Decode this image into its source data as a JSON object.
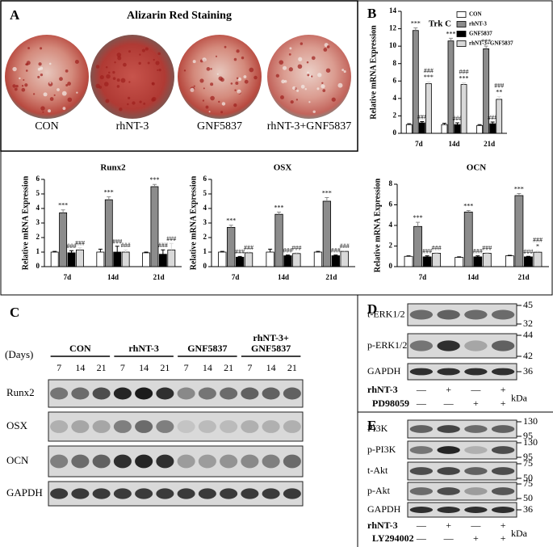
{
  "panel_labels": [
    "A",
    "B",
    "C",
    "D",
    "E"
  ],
  "staining": {
    "title": "Alizarin Red Staining",
    "groups": [
      "CON",
      "rhNT-3",
      "GNF5837",
      "rhNT-3+GNF5837"
    ]
  },
  "chart_data": [
    {
      "type": "bar",
      "title": "Trk C",
      "y_label": "Relative mRNA Expression",
      "categories": [
        "7d",
        "14d",
        "21d"
      ],
      "ylim": [
        0,
        14
      ],
      "yticks": [
        0,
        2,
        4,
        6,
        8,
        10,
        12,
        14
      ],
      "legend": "top-right",
      "series": [
        {
          "name": "CON",
          "color": "#ffffff",
          "values": [
            1.0,
            1.0,
            0.9
          ],
          "errors": [
            0.1,
            0.15,
            0.1
          ]
        },
        {
          "name": "rhNT-3",
          "color": "#8c8c8c",
          "values": [
            11.8,
            10.6,
            9.7
          ],
          "errors": [
            0.3,
            0.3,
            0.3
          ],
          "annotations": [
            [
              "***"
            ],
            [
              "***"
            ],
            [
              "***"
            ]
          ]
        },
        {
          "name": "GNF5837",
          "color": "#000000",
          "values": [
            1.2,
            1.0,
            1.1
          ],
          "errors": [
            0.15,
            0.2,
            0.2
          ],
          "annotations": [
            [
              "###"
            ],
            [
              "###"
            ],
            [
              "###"
            ]
          ]
        },
        {
          "name": "rhNT-3+GNF5837",
          "color": "#d9d9d9",
          "values": [
            5.7,
            5.6,
            3.9
          ],
          "errors": [
            0.2,
            0.2,
            0.3
          ],
          "annotations": [
            [
              "###",
              "***"
            ],
            [
              "###",
              "***"
            ],
            [
              "###",
              "**"
            ]
          ]
        }
      ]
    },
    {
      "type": "bar",
      "title": "Runx2",
      "y_label": "Relative mRNA Expression",
      "categories": [
        "7d",
        "14d",
        "21d"
      ],
      "ylim": [
        0,
        6
      ],
      "yticks": [
        0,
        1,
        2,
        3,
        4,
        5,
        6
      ],
      "series": [
        {
          "color": "#ffffff",
          "values": [
            1.0,
            1.0,
            0.95
          ],
          "errors": [
            0.05,
            0.2,
            0.05
          ]
        },
        {
          "color": "#8c8c8c",
          "values": [
            3.7,
            4.6,
            5.5
          ],
          "errors": [
            0.2,
            0.2,
            0.15
          ],
          "annotations": [
            [
              "***"
            ],
            [
              "***"
            ],
            [
              "***"
            ]
          ]
        },
        {
          "color": "#000000",
          "values": [
            0.95,
            1.0,
            0.85
          ],
          "errors": [
            0.15,
            0.4,
            0.3
          ],
          "annotations": [
            [
              "###"
            ],
            [
              "###"
            ],
            [
              "###"
            ]
          ]
        },
        {
          "color": "#d9d9d9",
          "values": [
            1.15,
            1.0,
            1.15
          ],
          "errors": [
            0.15,
            0.15,
            0.45
          ],
          "annotations": [
            [
              "###"
            ],
            [
              "###"
            ],
            [
              "###"
            ]
          ]
        }
      ]
    },
    {
      "type": "bar",
      "title": "OSX",
      "y_label": "Relative mRNA Expression",
      "categories": [
        "7d",
        "14d",
        "21d"
      ],
      "ylim": [
        0,
        6
      ],
      "yticks": [
        0,
        1,
        2,
        3,
        4,
        5,
        6
      ],
      "series": [
        {
          "color": "#ffffff",
          "values": [
            1.0,
            1.0,
            1.0
          ],
          "errors": [
            0.05,
            0.2,
            0.05
          ]
        },
        {
          "color": "#8c8c8c",
          "values": [
            2.7,
            3.6,
            4.5
          ],
          "errors": [
            0.15,
            0.15,
            0.25
          ],
          "annotations": [
            [
              "***"
            ],
            [
              "***"
            ],
            [
              "***"
            ]
          ]
        },
        {
          "color": "#000000",
          "values": [
            0.65,
            0.75,
            0.75
          ],
          "errors": [
            0.05,
            0.05,
            0.05
          ],
          "annotations": [
            [
              "###"
            ],
            [
              "###"
            ],
            [
              "###"
            ]
          ]
        },
        {
          "color": "#d9d9d9",
          "values": [
            0.95,
            0.9,
            1.05
          ],
          "errors": [
            0.05,
            0.05,
            0.05
          ],
          "annotations": [
            [
              "###"
            ],
            [
              "###"
            ],
            [
              "###"
            ]
          ]
        }
      ]
    },
    {
      "type": "bar",
      "title": "OCN",
      "y_label": "Relative mRNA Expression",
      "categories": [
        "7d",
        "14d",
        "21d"
      ],
      "ylim": [
        0,
        8
      ],
      "yticks": [
        0,
        2,
        4,
        6,
        8
      ],
      "series": [
        {
          "color": "#ffffff",
          "values": [
            1.0,
            0.9,
            1.05
          ],
          "errors": [
            0.05,
            0.05,
            0.05
          ]
        },
        {
          "color": "#8c8c8c",
          "values": [
            3.9,
            5.3,
            6.9
          ],
          "errors": [
            0.4,
            0.15,
            0.2
          ],
          "annotations": [
            [
              "***"
            ],
            [
              "***"
            ],
            [
              "***"
            ]
          ]
        },
        {
          "color": "#000000",
          "values": [
            0.95,
            0.95,
            0.95
          ],
          "errors": [
            0.1,
            0.1,
            0.05
          ],
          "annotations": [
            [
              "###"
            ],
            [
              "###"
            ],
            [
              "###"
            ]
          ]
        },
        {
          "color": "#d9d9d9",
          "values": [
            1.3,
            1.3,
            1.4
          ],
          "errors": [
            0.05,
            0.05,
            0.1
          ],
          "annotations": [
            [
              "###"
            ],
            [
              "###"
            ],
            [
              "###",
              "*"
            ]
          ]
        }
      ]
    }
  ],
  "western_c": {
    "days_label": "(Days)",
    "groups": [
      [
        "CON"
      ],
      [
        "rhNT-3"
      ],
      [
        "GNF5837"
      ],
      [
        "rhNT-3+",
        "GNF5837"
      ]
    ],
    "days": [
      "7",
      "14",
      "21"
    ],
    "rows": [
      "Runx2",
      "OSX",
      "OCN",
      "GAPDH"
    ]
  },
  "western_d": {
    "rows": [
      {
        "label": "t-ERK1/2",
        "kda": [
          "45",
          "32"
        ]
      },
      {
        "label": "p-ERK1/2",
        "kda": [
          "44",
          "42"
        ]
      },
      {
        "label": "GAPDH",
        "kda": [
          "36"
        ]
      }
    ],
    "treatments": [
      {
        "name": "rhNT-3",
        "signs": [
          "—",
          "+",
          "—",
          "+"
        ]
      },
      {
        "name": "PD98059",
        "signs": [
          "—",
          "—",
          "+",
          "+"
        ]
      }
    ],
    "unit": "kDa"
  },
  "western_e": {
    "rows": [
      {
        "label": "PI3K",
        "kda": [
          "130",
          "95"
        ]
      },
      {
        "label": "p-PI3K",
        "kda": [
          "130",
          "95"
        ]
      },
      {
        "label": "t-Akt",
        "kda": [
          "75",
          "50"
        ]
      },
      {
        "label": "p-Akt",
        "kda": [
          "75",
          "50"
        ]
      },
      {
        "label": "GAPDH",
        "kda": [
          "36"
        ]
      }
    ],
    "treatments": [
      {
        "name": "rhNT-3",
        "signs": [
          "—",
          "+",
          "—",
          "+"
        ]
      },
      {
        "name": "LY294002",
        "signs": [
          "—",
          "—",
          "+",
          "+"
        ]
      }
    ],
    "unit": "kDa"
  }
}
